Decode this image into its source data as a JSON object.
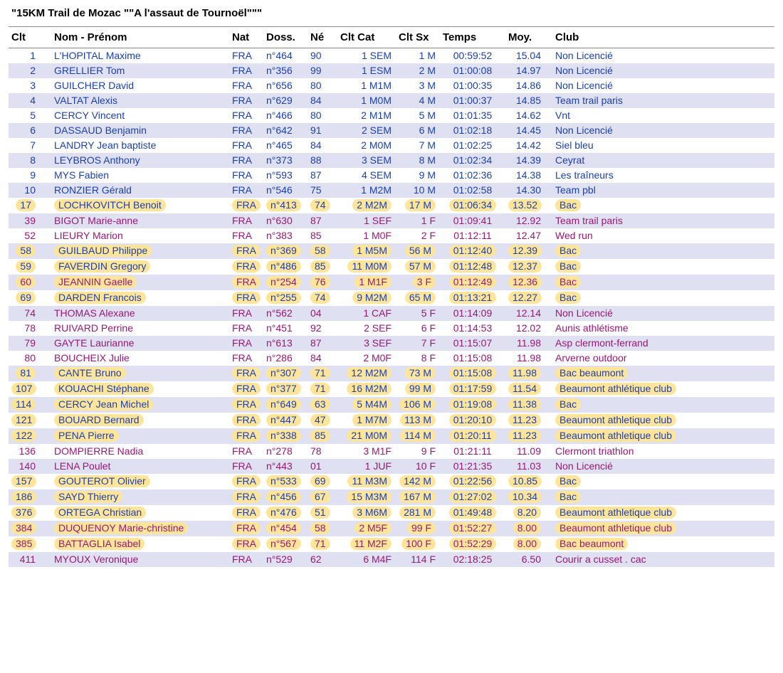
{
  "title": "\"15KM Trail de Mozac \"\"A l'assaut de Tournoël\"\"\"",
  "colors": {
    "band": "#dfe0f1",
    "male": "#1a3fb4",
    "female": "#9a1776",
    "highlight_bg": "#ffe59a"
  },
  "columns": [
    {
      "key": "clt",
      "label": "Clt",
      "class": "c-clt"
    },
    {
      "key": "nom",
      "label": "Nom - Prénom",
      "class": "c-nom"
    },
    {
      "key": "nat",
      "label": "Nat",
      "class": "c-nat"
    },
    {
      "key": "doss",
      "label": "Doss.",
      "class": "c-doss"
    },
    {
      "key": "ne",
      "label": "Né",
      "class": "c-ne"
    },
    {
      "key": "ccat",
      "label": "Clt Cat",
      "class": "c-ccat"
    },
    {
      "key": "csx",
      "label": "Clt Sx",
      "class": "c-csx"
    },
    {
      "key": "temps",
      "label": "Temps",
      "class": "c-temps"
    },
    {
      "key": "moy",
      "label": "Moy.",
      "class": "c-moy"
    },
    {
      "key": "club",
      "label": "Club",
      "class": "c-club"
    }
  ],
  "rows": [
    {
      "clt": "1",
      "nom": "L'HOPITAL Maxime",
      "nat": "FRA",
      "doss": "n°464",
      "ne": "90",
      "ccat": "1 SEM",
      "csx": "1 M",
      "temps": "00:59:52",
      "moy": "15.04",
      "club": "Non Licencié",
      "sex": "M",
      "hl": false
    },
    {
      "clt": "2",
      "nom": "GRELLIER Tom",
      "nat": "FRA",
      "doss": "n°356",
      "ne": "99",
      "ccat": "1 ESM",
      "csx": "2 M",
      "temps": "01:00:08",
      "moy": "14.97",
      "club": "Non Licencié",
      "sex": "M",
      "hl": false
    },
    {
      "clt": "3",
      "nom": "GUILCHER David",
      "nat": "FRA",
      "doss": "n°656",
      "ne": "80",
      "ccat": "1 M1M",
      "csx": "3 M",
      "temps": "01:00:35",
      "moy": "14.86",
      "club": "Non Licencié",
      "sex": "M",
      "hl": false
    },
    {
      "clt": "4",
      "nom": "VALTAT Alexis",
      "nat": "FRA",
      "doss": "n°629",
      "ne": "84",
      "ccat": "1 M0M",
      "csx": "4 M",
      "temps": "01:00:37",
      "moy": "14.85",
      "club": "Team trail paris",
      "sex": "M",
      "hl": false
    },
    {
      "clt": "5",
      "nom": "CERCY Vincent",
      "nat": "FRA",
      "doss": "n°466",
      "ne": "80",
      "ccat": "2 M1M",
      "csx": "5 M",
      "temps": "01:01:35",
      "moy": "14.62",
      "club": "Vnt",
      "sex": "M",
      "hl": false
    },
    {
      "clt": "6",
      "nom": "DASSAUD Benjamin",
      "nat": "FRA",
      "doss": "n°642",
      "ne": "91",
      "ccat": "2 SEM",
      "csx": "6 M",
      "temps": "01:02:18",
      "moy": "14.45",
      "club": "Non Licencié",
      "sex": "M",
      "hl": false
    },
    {
      "clt": "7",
      "nom": "LANDRY Jean baptiste",
      "nat": "FRA",
      "doss": "n°465",
      "ne": "84",
      "ccat": "2 M0M",
      "csx": "7 M",
      "temps": "01:02:25",
      "moy": "14.42",
      "club": "Siel bleu",
      "sex": "M",
      "hl": false
    },
    {
      "clt": "8",
      "nom": "LEYBROS Anthony",
      "nat": "FRA",
      "doss": "n°373",
      "ne": "88",
      "ccat": "3 SEM",
      "csx": "8 M",
      "temps": "01:02:34",
      "moy": "14.39",
      "club": "Ceyrat",
      "sex": "M",
      "hl": false
    },
    {
      "clt": "9",
      "nom": "MYS Fabien",
      "nat": "FRA",
      "doss": "n°593",
      "ne": "87",
      "ccat": "4 SEM",
      "csx": "9 M",
      "temps": "01:02:36",
      "moy": "14.38",
      "club": "Les traîneurs",
      "sex": "M",
      "hl": false
    },
    {
      "clt": "10",
      "nom": "RONZIER Gérald",
      "nat": "FRA",
      "doss": "n°546",
      "ne": "75",
      "ccat": "1 M2M",
      "csx": "10 M",
      "temps": "01:02:58",
      "moy": "14.30",
      "club": "Team pbl",
      "sex": "M",
      "hl": false
    },
    {
      "clt": "17",
      "nom": "LOCHKOVITCH Benoit",
      "nat": "FRA",
      "doss": "n°413",
      "ne": "74",
      "ccat": "2 M2M",
      "csx": "17 M",
      "temps": "01:06:34",
      "moy": "13.52",
      "club": "Bac",
      "sex": "M",
      "hl": true
    },
    {
      "clt": "39",
      "nom": "BIGOT Marie-anne",
      "nat": "FRA",
      "doss": "n°630",
      "ne": "87",
      "ccat": "1 SEF",
      "csx": "1 F",
      "temps": "01:09:41",
      "moy": "12.92",
      "club": "Team trail paris",
      "sex": "F",
      "hl": false
    },
    {
      "clt": "52",
      "nom": "LIEURY Marion",
      "nat": "FRA",
      "doss": "n°383",
      "ne": "85",
      "ccat": "1 M0F",
      "csx": "2 F",
      "temps": "01:12:11",
      "moy": "12.47",
      "club": "Wed run",
      "sex": "F",
      "hl": false
    },
    {
      "clt": "58",
      "nom": "GUILBAUD Philippe",
      "nat": "FRA",
      "doss": "n°369",
      "ne": "58",
      "ccat": "1 M5M",
      "csx": "56 M",
      "temps": "01:12:40",
      "moy": "12.39",
      "club": "Bac",
      "sex": "M",
      "hl": true
    },
    {
      "clt": "59",
      "nom": "FAVERDIN Gregory",
      "nat": "FRA",
      "doss": "n°486",
      "ne": "85",
      "ccat": "11 M0M",
      "csx": "57 M",
      "temps": "01:12:48",
      "moy": "12.37",
      "club": "Bac",
      "sex": "M",
      "hl": true
    },
    {
      "clt": "60",
      "nom": "JEANNIN Gaelle",
      "nat": "FRA",
      "doss": "n°254",
      "ne": "76",
      "ccat": "1 M1F",
      "csx": "3 F",
      "temps": "01:12:49",
      "moy": "12.36",
      "club": "Bac",
      "sex": "F",
      "hl": true
    },
    {
      "clt": "69",
      "nom": "DARDEN Francois",
      "nat": "FRA",
      "doss": "n°255",
      "ne": "74",
      "ccat": "9 M2M",
      "csx": "65 M",
      "temps": "01:13:21",
      "moy": "12.27",
      "club": "Bac",
      "sex": "M",
      "hl": true
    },
    {
      "clt": "74",
      "nom": "THOMAS Alexane",
      "nat": "FRA",
      "doss": "n°562",
      "ne": "04",
      "ccat": "1 CAF",
      "csx": "5 F",
      "temps": "01:14:09",
      "moy": "12.14",
      "club": "Non Licencié",
      "sex": "F",
      "hl": false
    },
    {
      "clt": "78",
      "nom": "RUIVARD Perrine",
      "nat": "FRA",
      "doss": "n°451",
      "ne": "92",
      "ccat": "2 SEF",
      "csx": "6 F",
      "temps": "01:14:53",
      "moy": "12.02",
      "club": "Aunis athlétisme",
      "sex": "F",
      "hl": false
    },
    {
      "clt": "79",
      "nom": "GAYTE Laurianne",
      "nat": "FRA",
      "doss": "n°613",
      "ne": "87",
      "ccat": "3 SEF",
      "csx": "7 F",
      "temps": "01:15:07",
      "moy": "11.98",
      "club": "Asp clermont-ferrand",
      "sex": "F",
      "hl": false
    },
    {
      "clt": "80",
      "nom": "BOUCHEIX Julie",
      "nat": "FRA",
      "doss": "n°286",
      "ne": "84",
      "ccat": "2 M0F",
      "csx": "8 F",
      "temps": "01:15:08",
      "moy": "11.98",
      "club": "Arverne outdoor",
      "sex": "F",
      "hl": false
    },
    {
      "clt": "81",
      "nom": "CANTE Bruno",
      "nat": "FRA",
      "doss": "n°307",
      "ne": "71",
      "ccat": "12 M2M",
      "csx": "73 M",
      "temps": "01:15:08",
      "moy": "11.98",
      "club": "Bac beaumont",
      "sex": "M",
      "hl": true
    },
    {
      "clt": "107",
      "nom": "KOUACHI Stéphane",
      "nat": "FRA",
      "doss": "n°377",
      "ne": "71",
      "ccat": "16 M2M",
      "csx": "99 M",
      "temps": "01:17:59",
      "moy": "11.54",
      "club": "Beaumont athlétique club",
      "sex": "M",
      "hl": true
    },
    {
      "clt": "114",
      "nom": "CERCY Jean Michel",
      "nat": "FRA",
      "doss": "n°649",
      "ne": "63",
      "ccat": "5 M4M",
      "csx": "106 M",
      "temps": "01:19:08",
      "moy": "11.38",
      "club": "Bac",
      "sex": "M",
      "hl": true
    },
    {
      "clt": "121",
      "nom": "BOUARD Bernard",
      "nat": "FRA",
      "doss": "n°447",
      "ne": "47",
      "ccat": "1 M7M",
      "csx": "113 M",
      "temps": "01:20:10",
      "moy": "11.23",
      "club": "Beaumont athletique club",
      "sex": "M",
      "hl": true
    },
    {
      "clt": "122",
      "nom": "PENA Pierre",
      "nat": "FRA",
      "doss": "n°338",
      "ne": "85",
      "ccat": "21 M0M",
      "csx": "114 M",
      "temps": "01:20:11",
      "moy": "11.23",
      "club": "Beaumont athletique club",
      "sex": "M",
      "hl": true
    },
    {
      "clt": "136",
      "nom": "DOMPIERRE Nadia",
      "nat": "FRA",
      "doss": "n°278",
      "ne": "78",
      "ccat": "3 M1F",
      "csx": "9 F",
      "temps": "01:21:11",
      "moy": "11.09",
      "club": "Clermont triathlon",
      "sex": "F",
      "hl": false
    },
    {
      "clt": "140",
      "nom": "LENA Poulet",
      "nat": "FRA",
      "doss": "n°443",
      "ne": "01",
      "ccat": "1 JUF",
      "csx": "10 F",
      "temps": "01:21:35",
      "moy": "11.03",
      "club": "Non Licencié",
      "sex": "F",
      "hl": false
    },
    {
      "clt": "157",
      "nom": "GOUTEROT Olivier",
      "nat": "FRA",
      "doss": "n°533",
      "ne": "69",
      "ccat": "11 M3M",
      "csx": "142 M",
      "temps": "01:22:56",
      "moy": "10.85",
      "club": "Bac",
      "sex": "M",
      "hl": true
    },
    {
      "clt": "186",
      "nom": "SAYD Thierry",
      "nat": "FRA",
      "doss": "n°456",
      "ne": "67",
      "ccat": "15 M3M",
      "csx": "167 M",
      "temps": "01:27:02",
      "moy": "10.34",
      "club": "Bac",
      "sex": "M",
      "hl": true
    },
    {
      "clt": "376",
      "nom": "ORTEGA Christian",
      "nat": "FRA",
      "doss": "n°476",
      "ne": "51",
      "ccat": "3 M6M",
      "csx": "281 M",
      "temps": "01:49:48",
      "moy": "8.20",
      "club": "Beaumont athletique club",
      "sex": "M",
      "hl": true
    },
    {
      "clt": "384",
      "nom": "DUQUENOY Marie-christine",
      "nat": "FRA",
      "doss": "n°454",
      "ne": "58",
      "ccat": "2 M5F",
      "csx": "99 F",
      "temps": "01:52:27",
      "moy": "8.00",
      "club": "Beaumont athletique club",
      "sex": "F",
      "hl": true
    },
    {
      "clt": "385",
      "nom": "BATTAGLIA Isabel",
      "nat": "FRA",
      "doss": "n°567",
      "ne": "71",
      "ccat": "11 M2F",
      "csx": "100 F",
      "temps": "01:52:29",
      "moy": "8.00",
      "club": "Bac beaumont",
      "sex": "F",
      "hl": true
    },
    {
      "clt": "411",
      "nom": "MYOUX Veronique",
      "nat": "FRA",
      "doss": "n°529",
      "ne": "62",
      "ccat": "6 M4F",
      "csx": "114 F",
      "temps": "02:18:25",
      "moy": "6.50",
      "club": "Courir a cusset . cac",
      "sex": "F",
      "hl": false
    }
  ]
}
